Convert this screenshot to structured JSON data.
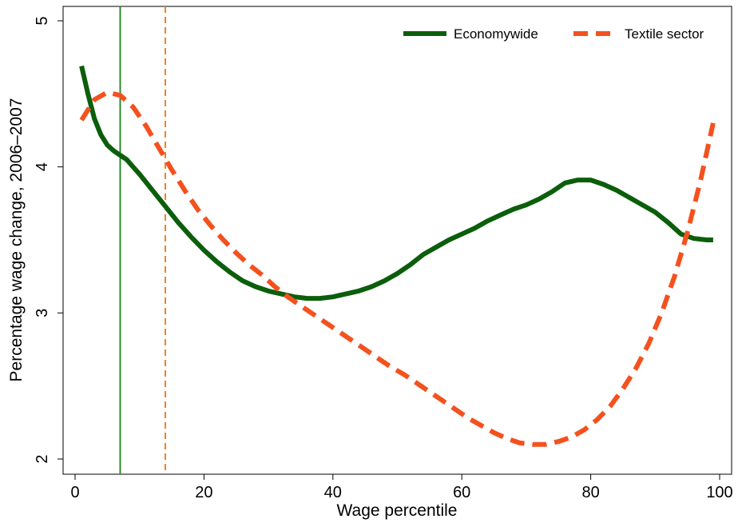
{
  "chart_data": {
    "type": "line",
    "title": "",
    "xlabel": "Wage percentile",
    "ylabel": "Percentage wage change, 2006–2007",
    "xlim": [
      0,
      100
    ],
    "ylim": [
      2,
      5
    ],
    "xticks": [
      0,
      20,
      40,
      60,
      80,
      100
    ],
    "yticks": [
      2,
      3,
      4,
      5
    ],
    "grid": false,
    "legend": "top-right",
    "series": [
      {
        "name": "Economywide",
        "color": "#0b5e0b",
        "style": "solid",
        "x": [
          1,
          2,
          3,
          4,
          5,
          6,
          7,
          8,
          9,
          10,
          12,
          14,
          16,
          18,
          20,
          22,
          24,
          26,
          28,
          30,
          32,
          34,
          36,
          38,
          40,
          42,
          44,
          46,
          48,
          50,
          52,
          54,
          56,
          58,
          60,
          62,
          64,
          66,
          68,
          70,
          72,
          74,
          76,
          78,
          80,
          82,
          84,
          86,
          88,
          90,
          92,
          94,
          96,
          98,
          99
        ],
        "y": [
          4.69,
          4.5,
          4.33,
          4.22,
          4.15,
          4.11,
          4.08,
          4.05,
          4.0,
          3.95,
          3.84,
          3.73,
          3.62,
          3.52,
          3.43,
          3.35,
          3.28,
          3.22,
          3.18,
          3.15,
          3.13,
          3.11,
          3.1,
          3.1,
          3.11,
          3.13,
          3.15,
          3.18,
          3.22,
          3.27,
          3.33,
          3.4,
          3.45,
          3.5,
          3.54,
          3.58,
          3.63,
          3.67,
          3.71,
          3.74,
          3.78,
          3.83,
          3.89,
          3.91,
          3.91,
          3.88,
          3.84,
          3.79,
          3.74,
          3.69,
          3.62,
          3.54,
          3.51,
          3.5,
          3.5
        ]
      },
      {
        "name": "Textile sector",
        "color": "#f4511e",
        "style": "dashed",
        "x": [
          1,
          3,
          5,
          7,
          9,
          11,
          13,
          15,
          17,
          19,
          21,
          23,
          25,
          27,
          29,
          31,
          33,
          35,
          37,
          39,
          41,
          43,
          45,
          47,
          49,
          51,
          53,
          55,
          57,
          59,
          61,
          63,
          65,
          67,
          69,
          71,
          73,
          75,
          77,
          79,
          81,
          83,
          85,
          87,
          89,
          91,
          93,
          95,
          97,
          99
        ],
        "y": [
          4.32,
          4.46,
          4.51,
          4.49,
          4.41,
          4.28,
          4.13,
          3.98,
          3.84,
          3.71,
          3.6,
          3.5,
          3.41,
          3.33,
          3.26,
          3.18,
          3.11,
          3.05,
          2.99,
          2.93,
          2.87,
          2.81,
          2.75,
          2.69,
          2.63,
          2.58,
          2.52,
          2.46,
          2.4,
          2.34,
          2.28,
          2.23,
          2.18,
          2.14,
          2.11,
          2.1,
          2.1,
          2.12,
          2.15,
          2.2,
          2.27,
          2.36,
          2.48,
          2.62,
          2.79,
          3.0,
          3.25,
          3.55,
          3.9,
          4.3
        ]
      }
    ],
    "vlines": [
      {
        "x": 7,
        "color": "#2a8a2a",
        "style": "solid"
      },
      {
        "x": 14,
        "color": "#f4811e",
        "style": "dashed"
      }
    ]
  }
}
